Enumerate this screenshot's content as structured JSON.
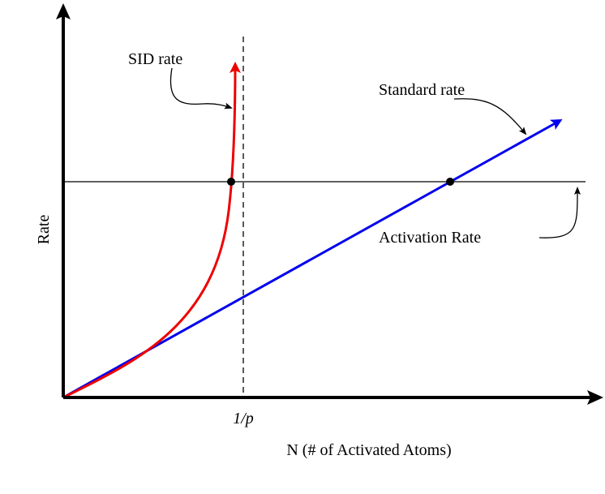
{
  "labels": {
    "sid_rate": "SID rate",
    "standard_rate": "Standard rate",
    "activation_rate": "Activation Rate"
  },
  "axes": {
    "y_label": "Rate",
    "x_tick": "1/p",
    "x_label": "N (# of Activated Atoms)"
  }
}
